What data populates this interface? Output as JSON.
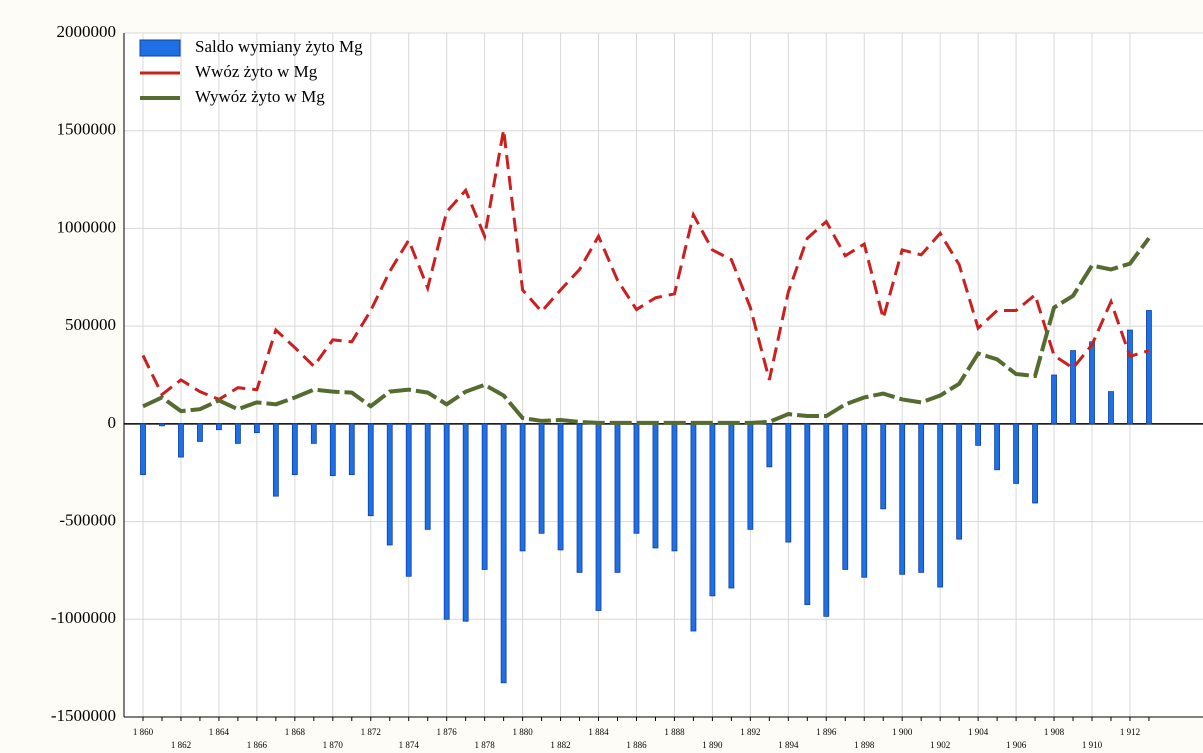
{
  "chart_data": {
    "type": "bar",
    "categories": [
      "1 860",
      null,
      "1 862",
      null,
      "1 864",
      null,
      "1 866",
      null,
      "1 868",
      null,
      "1 870",
      null,
      "1 872",
      null,
      "1 874",
      null,
      "1 876",
      null,
      "1 878",
      null,
      "1 880",
      null,
      "1 882",
      null,
      "1 884",
      null,
      "1 886",
      null,
      "1 888",
      null,
      "1 890",
      null,
      "1 892",
      null,
      "1 894",
      null,
      "1 896",
      null,
      "1 898",
      null,
      "1 900",
      null,
      "1 902",
      null,
      "1 904",
      null,
      "1 906",
      null,
      "1 908",
      null,
      "1 910",
      null,
      "1 912",
      null
    ],
    "series": [
      {
        "name": "Saldo wymiany żyto Mg",
        "type": "bar",
        "color": "#1f6fe5",
        "values": [
          -260000,
          -10000,
          -170000,
          -90000,
          -30000,
          -100000,
          -45000,
          -370000,
          -260000,
          -100000,
          -265000,
          -260000,
          -470000,
          -620000,
          -780000,
          -540000,
          -1000000,
          -1010000,
          -745000,
          -1325000,
          -650000,
          -560000,
          -645000,
          -760000,
          -955000,
          -760000,
          -560000,
          -635000,
          -650000,
          -1060000,
          -880000,
          -840000,
          -540000,
          -220000,
          -605000,
          -925000,
          -985000,
          -745000,
          -785000,
          -435000,
          -770000,
          -760000,
          -835000,
          -590000,
          -110000,
          -235000,
          -305000,
          -405000,
          250000,
          375000,
          420000,
          165000,
          480000,
          580000
        ]
      },
      {
        "name": "Wwóz żyto w Mg",
        "type": "line",
        "color": "#cc1f1f",
        "values": [
          350000,
          150000,
          225000,
          165000,
          125000,
          185000,
          175000,
          480000,
          390000,
          295000,
          430000,
          420000,
          580000,
          780000,
          940000,
          695000,
          1085000,
          1195000,
          960000,
          1505000,
          685000,
          575000,
          685000,
          790000,
          960000,
          735000,
          585000,
          645000,
          665000,
          1070000,
          890000,
          840000,
          595000,
          225000,
          675000,
          950000,
          1035000,
          860000,
          920000,
          540000,
          890000,
          865000,
          975000,
          815000,
          490000,
          580000,
          580000,
          660000,
          350000,
          285000,
          405000,
          625000,
          345000,
          375000
        ]
      },
      {
        "name": "Wywóz żyto w Mg",
        "type": "line",
        "color": "#556b2f",
        "values": [
          90000,
          135000,
          65000,
          75000,
          120000,
          75000,
          110000,
          100000,
          135000,
          175000,
          165000,
          160000,
          90000,
          165000,
          175000,
          160000,
          100000,
          165000,
          200000,
          145000,
          30000,
          15000,
          20000,
          10000,
          5000,
          5000,
          5000,
          5000,
          5000,
          5000,
          5000,
          5000,
          5000,
          10000,
          50000,
          40000,
          40000,
          100000,
          135000,
          155000,
          125000,
          110000,
          145000,
          205000,
          360000,
          330000,
          255000,
          245000,
          595000,
          655000,
          810000,
          790000,
          820000,
          950000
        ]
      }
    ],
    "ylim": [
      -1500000,
      2000000
    ],
    "yticks": [
      -1500000,
      -1000000,
      -500000,
      0,
      500000,
      1000000,
      1500000,
      2000000
    ],
    "grid": true
  }
}
